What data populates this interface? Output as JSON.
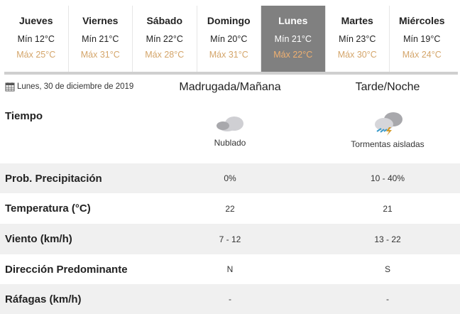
{
  "days": [
    {
      "day": "Jueves",
      "min": "Mín 12°C",
      "max": "Máx 25°C"
    },
    {
      "day": "Viernes",
      "min": "Mín 21°C",
      "max": "Máx 31°C"
    },
    {
      "day": "Sábado",
      "min": "Mín 22°C",
      "max": "Máx 28°C"
    },
    {
      "day": "Domingo",
      "min": "Mín 20°C",
      "max": "Máx 31°C"
    },
    {
      "day": "Lunes",
      "min": "Mín 21°C",
      "max": "Máx 22°C",
      "active": true
    },
    {
      "day": "Martes",
      "min": "Mín 23°C",
      "max": "Máx 30°C"
    },
    {
      "day": "Miércoles",
      "min": "Mín 19°C",
      "max": "Máx 24°C"
    }
  ],
  "date": "Lunes, 30 de diciembre de 2019",
  "columns": [
    "Madrugada/Mañana",
    "Tarde/Noche"
  ],
  "weather": {
    "label": "Tiempo",
    "morning": {
      "icon": "cloudy-icon",
      "desc": "Nublado"
    },
    "night": {
      "icon": "thunderstorm-icon",
      "desc": "Tormentas aisladas"
    }
  },
  "rows": [
    {
      "label": "Prob. Precipitación",
      "morning": "0%",
      "night": "10 - 40%"
    },
    {
      "label": "Temperatura (°C)",
      "morning": "22",
      "night": "21"
    },
    {
      "label": "Viento (km/h)",
      "morning": "7 - 12",
      "night": "13 - 22"
    },
    {
      "label": "Dirección Predominante",
      "morning": "N",
      "night": "S"
    },
    {
      "label": "Ráfagas (km/h)",
      "morning": "-",
      "night": "-"
    }
  ],
  "colors": {
    "active_tab": "#808080",
    "max_temp": "#d4a56a",
    "stripe": "#f0f0f0"
  }
}
